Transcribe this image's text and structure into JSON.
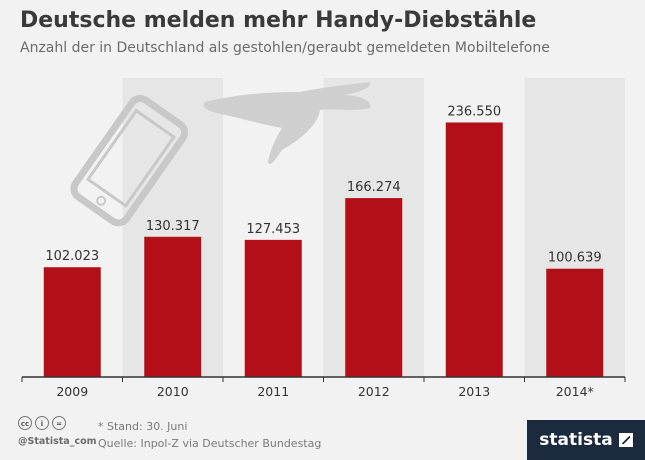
{
  "header": {
    "title": "Deutsche melden mehr Handy-Diebstähle",
    "subtitle": "Anzahl der in Deutschland als gestohlen/geraubt gemeldeten Mobiltelefone"
  },
  "footer": {
    "note": "* Stand: 30. Juni",
    "source": "Quelle: Inpol-Z via Deutscher Bundestag",
    "handle": "@Statista_com",
    "brand": "statista"
  },
  "colors": {
    "bar": "#b30f19",
    "stripe": "#e6e6e6",
    "axis": "#333333"
  },
  "chart_data": {
    "type": "bar",
    "categories": [
      "2009",
      "2010",
      "2011",
      "2012",
      "2013",
      "2014*"
    ],
    "values": [
      102023,
      130317,
      127453,
      166274,
      236550,
      100639
    ],
    "labels": [
      "102.023",
      "130.317",
      "127.453",
      "166.274",
      "236.550",
      "100.639"
    ],
    "ylim": [
      0,
      250000
    ],
    "grid": false,
    "legend": "none"
  }
}
